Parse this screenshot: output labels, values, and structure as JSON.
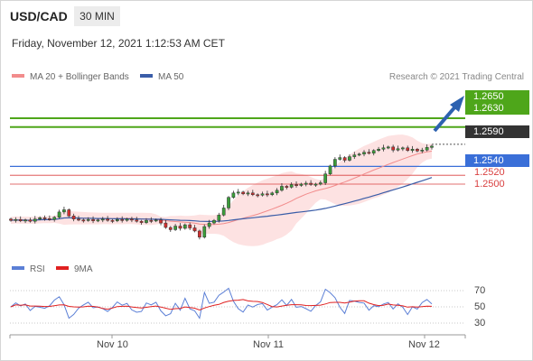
{
  "header": {
    "pair": "USD/CAD",
    "timeframe": "30 MIN"
  },
  "timestamp": "Friday, November 12, 2021 1:12:53 AM CET",
  "legend": {
    "ma20": {
      "label": "MA 20 + Bollinger Bands",
      "color": "#f28c8c"
    },
    "ma50": {
      "label": "MA 50",
      "color": "#3a5da8"
    }
  },
  "credit": "Research © 2021 Trading Central",
  "levels": {
    "r2": "1.2650",
    "r1": "1.2630",
    "last": "1.2590",
    "pivot": "1.2540",
    "s1": "1.2520",
    "s2": "1.2500"
  },
  "rsi_legend": {
    "rsi": {
      "label": "RSI",
      "color": "#5b7fd6"
    },
    "ma": {
      "label": "9MA",
      "color": "#e02020"
    }
  },
  "rsi_ticks": [
    "70",
    "50",
    "30"
  ],
  "dates": [
    "Nov 10",
    "Nov 11",
    "Nov 12"
  ],
  "colors": {
    "resistance": "#4ea61a",
    "pivot": "#3a6fd8",
    "support": "#d94040",
    "last": "#333333",
    "arrow": "#2d62b0"
  },
  "chart_data": {
    "type": "candlestick",
    "instrument": "USD/CAD",
    "interval": "30 MIN",
    "overlays": [
      "MA 20 + Bollinger Bands",
      "MA 50"
    ],
    "close_series": [
      1.2418,
      1.242,
      1.2417,
      1.2419,
      1.2416,
      1.2421,
      1.2424,
      1.2422,
      1.242,
      1.2425,
      1.2437,
      1.2442,
      1.2428,
      1.2421,
      1.2419,
      1.2418,
      1.242,
      1.2417,
      1.2419,
      1.2421,
      1.2418,
      1.2417,
      1.242,
      1.2418,
      1.2421,
      1.2419,
      1.2416,
      1.2413,
      1.2418,
      1.2417,
      1.2419,
      1.2412,
      1.2402,
      1.2397,
      1.2405,
      1.24,
      1.2408,
      1.2401,
      1.2394,
      1.238,
      1.2404,
      1.2412,
      1.2418,
      1.243,
      1.2446,
      1.247,
      1.248,
      1.2482,
      1.2478,
      1.248,
      1.2476,
      1.2475,
      1.2478,
      1.2476,
      1.248,
      1.2486,
      1.2495,
      1.2493,
      1.2499,
      1.2497,
      1.25,
      1.2502,
      1.2499,
      1.25,
      1.2503,
      1.2523,
      1.2541,
      1.2556,
      1.256,
      1.2554,
      1.2562,
      1.2566,
      1.2568,
      1.2572,
      1.257,
      1.2576,
      1.2579,
      1.2582,
      1.2584,
      1.2577,
      1.258,
      1.2582,
      1.2576,
      1.2579,
      1.2575,
      1.2577,
      1.2583,
      1.2586
    ],
    "last_price": 1.259,
    "levels": {
      "resistance": [
        1.265,
        1.263
      ],
      "pivot": 1.254,
      "support": [
        1.252,
        1.25
      ]
    },
    "rsi": {
      "range": [
        0,
        100
      ],
      "ticks": [
        70,
        50,
        30
      ],
      "ma_period": 9
    },
    "x_ticks": [
      "Nov 10",
      "Nov 11",
      "Nov 12"
    ]
  }
}
